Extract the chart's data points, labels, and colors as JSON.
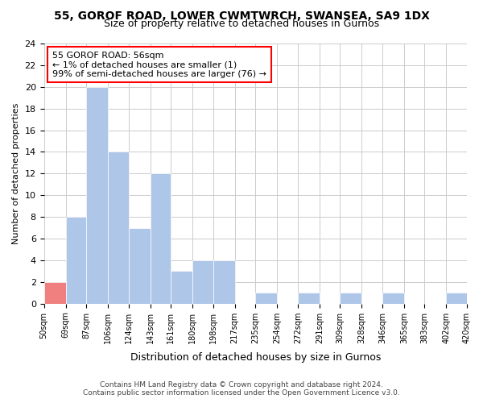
{
  "title": "55, GOROF ROAD, LOWER CWMTWRCH, SWANSEA, SA9 1DX",
  "subtitle": "Size of property relative to detached houses in Gurnos",
  "xlabel": "Distribution of detached houses by size in Gurnos",
  "ylabel": "Number of detached properties",
  "bar_color": "#aec6e8",
  "highlight_bar_color": "#f08080",
  "annotation_title": "55 GOROF ROAD: 56sqm",
  "annotation_line1": "← 1% of detached houses are smaller (1)",
  "annotation_line2": "99% of semi-detached houses are larger (76) →",
  "highlight_bin_index": 0,
  "bins": [
    50,
    69,
    87,
    106,
    124,
    143,
    161,
    180,
    198,
    217,
    235,
    254,
    272,
    291,
    309,
    328,
    346,
    365,
    383,
    402,
    420
  ],
  "counts": [
    2,
    8,
    20,
    14,
    7,
    12,
    3,
    4,
    4,
    0,
    1,
    0,
    1,
    0,
    1,
    0,
    1,
    0,
    0,
    1
  ],
  "tick_labels": [
    "50sqm",
    "69sqm",
    "87sqm",
    "106sqm",
    "124sqm",
    "143sqm",
    "161sqm",
    "180sqm",
    "198sqm",
    "217sqm",
    "235sqm",
    "254sqm",
    "272sqm",
    "291sqm",
    "309sqm",
    "328sqm",
    "346sqm",
    "365sqm",
    "383sqm",
    "402sqm",
    "420sqm"
  ],
  "ylim": [
    0,
    24
  ],
  "yticks": [
    0,
    2,
    4,
    6,
    8,
    10,
    12,
    14,
    16,
    18,
    20,
    22,
    24
  ],
  "footer1": "Contains HM Land Registry data © Crown copyright and database right 2024.",
  "footer2": "Contains public sector information licensed under the Open Government Licence v3.0.",
  "bg_color": "#ffffff",
  "grid_color": "#cccccc"
}
